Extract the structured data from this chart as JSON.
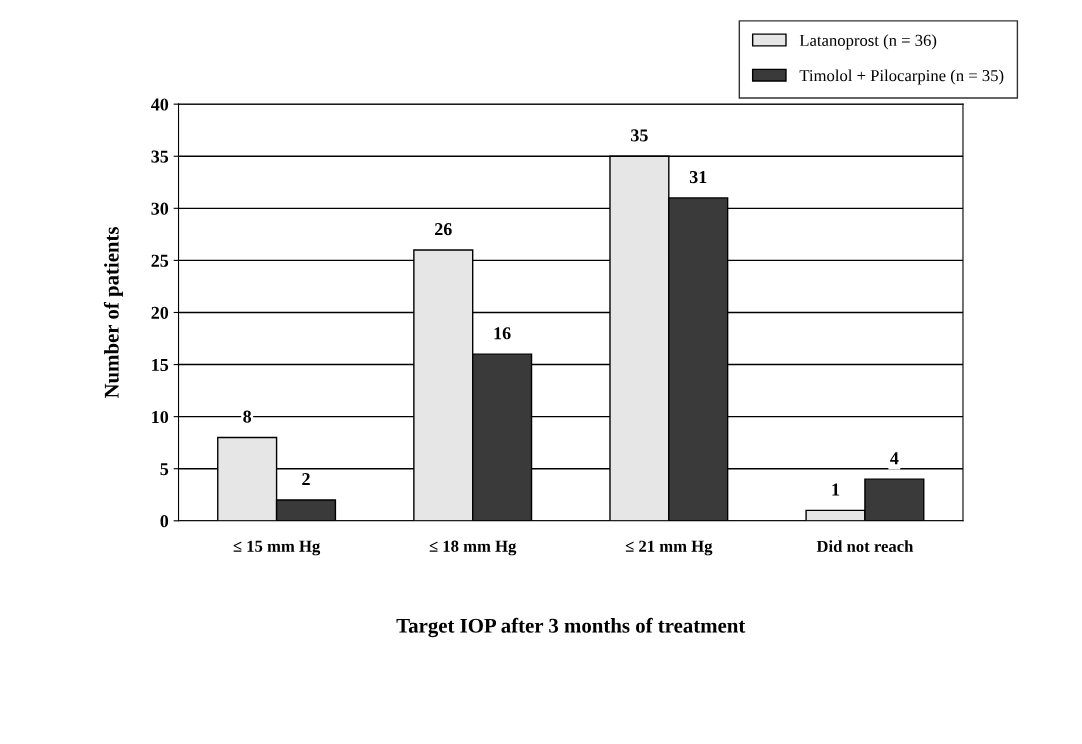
{
  "chart_data": {
    "type": "bar",
    "xlabel": "Target IOP after 3 months of treatment",
    "ylabel": "Number of patients",
    "categories": [
      "≤ 15 mm Hg",
      "≤ 18 mm Hg",
      "≤ 21 mm Hg",
      "Did not reach"
    ],
    "series": [
      {
        "name": "Latanoprost (n = 36)",
        "color": "#e6e6e6",
        "values": [
          8,
          26,
          35,
          1
        ]
      },
      {
        "name": "Timolol + Pilocarpine (n = 35)",
        "color": "#3a3a3a",
        "values": [
          2,
          16,
          31,
          4
        ]
      }
    ],
    "ylim": [
      0,
      40
    ],
    "yticks": [
      0,
      5,
      10,
      15,
      20,
      25,
      30,
      35,
      40
    ],
    "grid": "y",
    "legend": "top right",
    "data_labels": true
  }
}
